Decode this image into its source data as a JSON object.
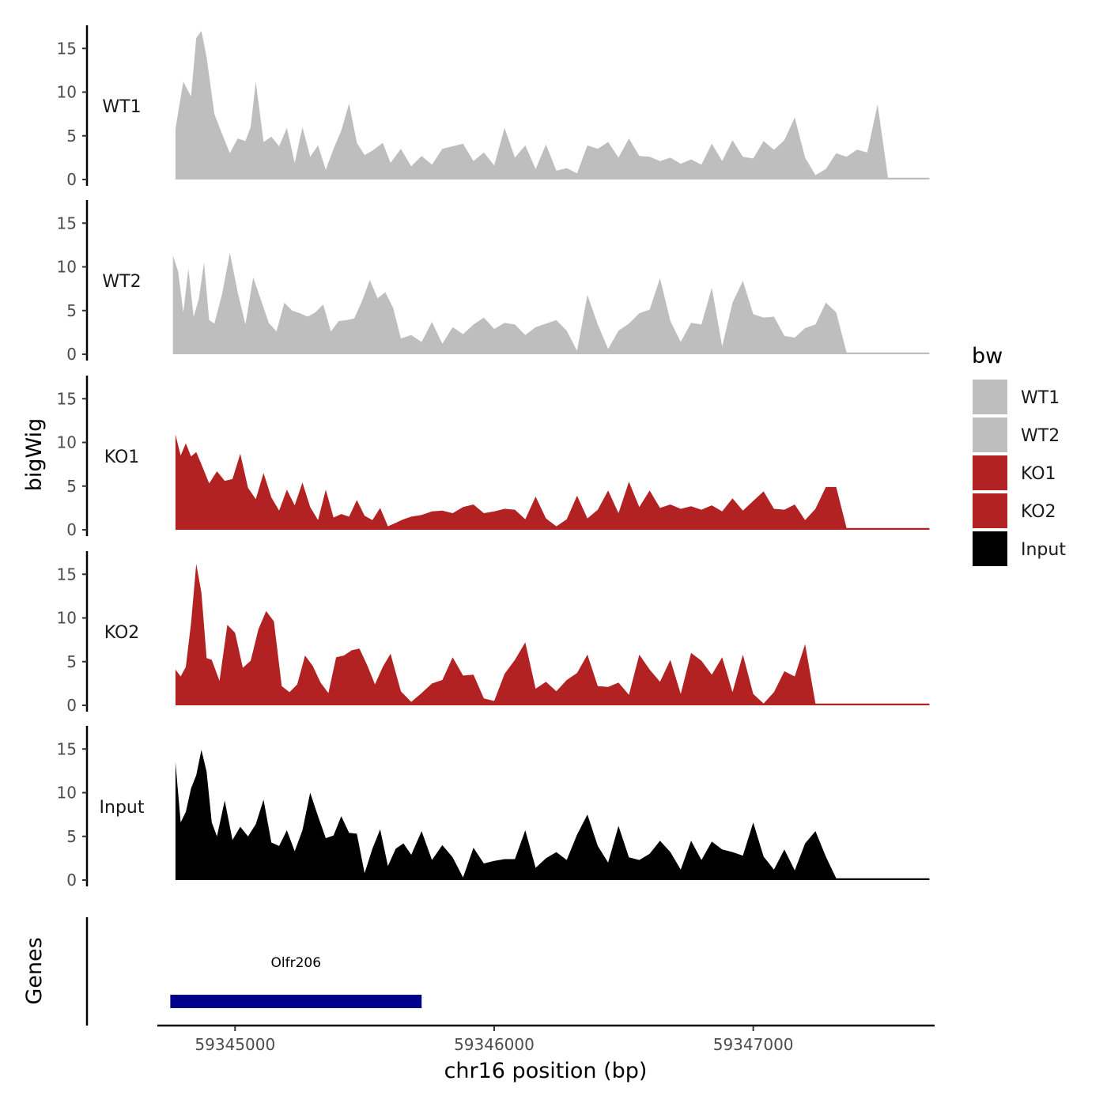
{
  "chart_data": {
    "type": "area",
    "x_range": [
      59344700,
      59347700
    ],
    "x_ticks": [
      59345000,
      59346000,
      59347000
    ],
    "x_tick_labels": [
      "59345000",
      "59346000",
      "59347000"
    ],
    "xlabel": "chr16 position (bp)",
    "ylabel": "bigWig",
    "genes_label": "Genes",
    "ylim": [
      0,
      18
    ],
    "y_ticks": [
      0,
      5,
      10,
      15
    ],
    "y_tick_labels": [
      "0",
      "5",
      "10",
      "15"
    ],
    "legend": {
      "title": "bw",
      "entries": [
        {
          "label": "WT1",
          "color": "#bebebe"
        },
        {
          "label": "WT2",
          "color": "#bebebe"
        },
        {
          "label": "KO1",
          "color": "#b22222"
        },
        {
          "label": "KO2",
          "color": "#b22222"
        },
        {
          "label": "Input",
          "color": "#000000"
        }
      ]
    },
    "series": [
      {
        "name": "WT1",
        "color": "#bebebe",
        "x": [
          59344770,
          59344800,
          59344830,
          59344850,
          59344870,
          59344890,
          59344920,
          59344950,
          59344980,
          59345010,
          59345040,
          59345060,
          59345080,
          59345110,
          59345140,
          59345170,
          59345200,
          59345230,
          59345260,
          59345290,
          59345320,
          59345350,
          59345380,
          59345410,
          59345440,
          59345470,
          59345500,
          59345530,
          59345570,
          59345600,
          59345640,
          59345680,
          59345720,
          59345760,
          59345800,
          59345840,
          59345880,
          59345920,
          59345960,
          59346000,
          59346040,
          59346080,
          59346120,
          59346160,
          59346200,
          59346240,
          59346280,
          59346320,
          59346360,
          59346400,
          59346440,
          59346480,
          59346520,
          59346560,
          59346600,
          59346640,
          59346680,
          59346720,
          59346760,
          59346800,
          59346840,
          59346880,
          59346920,
          59346960,
          59347000,
          59347040,
          59347080,
          59347120,
          59347160,
          59347200,
          59347240,
          59347280,
          59347320,
          59347360,
          59347400,
          59347440,
          59347480,
          59347520,
          59347560,
          59347600,
          59347640,
          59347680
        ],
        "values": [
          5.8,
          11.2,
          9.5,
          16.2,
          17,
          14,
          7.5,
          5.2,
          3,
          4.7,
          4.4,
          6,
          11.2,
          4.3,
          4.9,
          3.8,
          5.9,
          1.9,
          6,
          2.6,
          3.9,
          1.1,
          3.5,
          5.6,
          8.7,
          4.2,
          2.8,
          3.3,
          4.2,
          1.9,
          3.5,
          1.5,
          2.7,
          1.7,
          3.5,
          3.8,
          4.1,
          2.1,
          3.1,
          1.6,
          5.9,
          2.5,
          3.9,
          1.2,
          4,
          1,
          1.3,
          0.7,
          3.9,
          3.5,
          4.3,
          2.5,
          4.7,
          2.7,
          2.6,
          2.1,
          2.5,
          1.8,
          2.3,
          1.7,
          4.1,
          2.1,
          4.5,
          2.6,
          2.4,
          4.4,
          3.4,
          4.5,
          7.1,
          2.5,
          0.5,
          1.2,
          3,
          2.6,
          3.4,
          3.1,
          8.6,
          0.2,
          0.2,
          0.2,
          0.2,
          0.2
        ]
      },
      {
        "name": "WT2",
        "color": "#bebebe",
        "x": [
          59344760,
          59344780,
          59344800,
          59344820,
          59344840,
          59344860,
          59344880,
          59344900,
          59344920,
          59344950,
          59344980,
          59345010,
          59345040,
          59345070,
          59345100,
          59345130,
          59345160,
          59345190,
          59345220,
          59345250,
          59345280,
          59345310,
          59345340,
          59345370,
          59345400,
          59345430,
          59345460,
          59345490,
          59345520,
          59345550,
          59345580,
          59345610,
          59345640,
          59345680,
          59345720,
          59345760,
          59345800,
          59345840,
          59345880,
          59345920,
          59345960,
          59346000,
          59346040,
          59346080,
          59346120,
          59346160,
          59346200,
          59346240,
          59346280,
          59346320,
          59346360,
          59346400,
          59346440,
          59346480,
          59346520,
          59346560,
          59346600,
          59346640,
          59346680,
          59346720,
          59346760,
          59346800,
          59346840,
          59346880,
          59346920,
          59346960,
          59347000,
          59347040,
          59347080,
          59347120,
          59347160,
          59347200,
          59347240,
          59347280,
          59347320,
          59347360,
          59347400,
          59347440,
          59347480,
          59347520,
          59347560,
          59347600,
          59347640,
          59347680
        ],
        "values": [
          11.3,
          9.5,
          4.8,
          9.8,
          4.3,
          6.3,
          10.5,
          3.9,
          3.5,
          6.9,
          11.6,
          7.1,
          3.4,
          8.8,
          6.2,
          3.6,
          2.6,
          5.9,
          5,
          4.7,
          4.3,
          4.8,
          5.7,
          2.6,
          3.8,
          3.9,
          4.1,
          6.1,
          8.5,
          6.4,
          7.1,
          5.3,
          1.8,
          2.2,
          1.4,
          3.7,
          1.2,
          3.1,
          2.3,
          3.4,
          4.2,
          2.9,
          3.6,
          3.4,
          2.2,
          3.1,
          3.5,
          3.9,
          2.7,
          0.4,
          6.8,
          3.4,
          0.6,
          2.7,
          3.5,
          4.7,
          5.1,
          8.7,
          3.8,
          1.4,
          3.6,
          3.4,
          7.6,
          0.9,
          5.9,
          8.4,
          4.6,
          4.2,
          4.3,
          2.1,
          1.9,
          3,
          3.4,
          5.9,
          4.8,
          0.2,
          0.2,
          0.2,
          0.2,
          0.2,
          0.2,
          0.2,
          0.2,
          0.2
        ]
      },
      {
        "name": "KO1",
        "color": "#b22222",
        "x": [
          59344770,
          59344790,
          59344810,
          59344830,
          59344850,
          59344870,
          59344900,
          59344930,
          59344960,
          59344990,
          59345020,
          59345050,
          59345080,
          59345110,
          59345140,
          59345170,
          59345200,
          59345230,
          59345260,
          59345290,
          59345320,
          59345350,
          59345380,
          59345410,
          59345440,
          59345470,
          59345500,
          59345530,
          59345560,
          59345590,
          59345620,
          59345650,
          59345680,
          59345720,
          59345760,
          59345800,
          59345840,
          59345880,
          59345920,
          59345960,
          59346000,
          59346040,
          59346080,
          59346120,
          59346160,
          59346200,
          59346240,
          59346280,
          59346320,
          59346360,
          59346400,
          59346440,
          59346480,
          59346520,
          59346560,
          59346600,
          59346640,
          59346680,
          59346720,
          59346760,
          59346800,
          59346840,
          59346880,
          59346920,
          59346960,
          59347000,
          59347040,
          59347080,
          59347120,
          59347160,
          59347200,
          59347240,
          59347280,
          59347320,
          59347360,
          59347400,
          59347440,
          59347480,
          59347520,
          59347560,
          59347600,
          59347640,
          59347680
        ],
        "values": [
          10.9,
          8.5,
          9.9,
          8.4,
          8.9,
          7.5,
          5.3,
          6.7,
          5.6,
          5.8,
          8.7,
          4.8,
          3.5,
          6.5,
          3.7,
          2.2,
          4.6,
          2.8,
          5.4,
          2.6,
          1.1,
          4.6,
          1.4,
          1.8,
          1.5,
          3.4,
          1.6,
          1.1,
          2.5,
          0.4,
          0.8,
          1.2,
          1.5,
          1.7,
          2.1,
          2.2,
          1.9,
          2.6,
          2.9,
          1.9,
          2.1,
          2.4,
          2.3,
          1.2,
          3.8,
          1.3,
          0.4,
          1.2,
          3.9,
          1.3,
          2.3,
          4.5,
          1.9,
          5.5,
          2.6,
          4.5,
          2.5,
          2.9,
          2.4,
          2.7,
          2.3,
          2.8,
          2.1,
          3.6,
          2.2,
          3.3,
          4.4,
          2.4,
          2.3,
          2.9,
          1.1,
          2.4,
          4.9,
          4.9,
          0.2,
          0.2,
          0.2,
          0.2,
          0.2,
          0.2,
          0.2,
          0.2,
          0.2
        ]
      },
      {
        "name": "KO2",
        "color": "#b22222",
        "x": [
          59344770,
          59344790,
          59344810,
          59344830,
          59344850,
          59344870,
          59344890,
          59344910,
          59344940,
          59344970,
          59345000,
          59345030,
          59345060,
          59345090,
          59345120,
          59345150,
          59345180,
          59345210,
          59345240,
          59345270,
          59345300,
          59345330,
          59345360,
          59345390,
          59345420,
          59345450,
          59345480,
          59345510,
          59345540,
          59345570,
          59345600,
          59345640,
          59345680,
          59345720,
          59345760,
          59345800,
          59345840,
          59345880,
          59345920,
          59345960,
          59346000,
          59346040,
          59346080,
          59346120,
          59346160,
          59346200,
          59346240,
          59346280,
          59346320,
          59346360,
          59346400,
          59346440,
          59346480,
          59346520,
          59346560,
          59346600,
          59346640,
          59346680,
          59346720,
          59346760,
          59346800,
          59346840,
          59346880,
          59346920,
          59346960,
          59347000,
          59347040,
          59347080,
          59347120,
          59347160,
          59347200,
          59347240,
          59347280,
          59347320,
          59347360,
          59347400,
          59347440,
          59347480,
          59347520,
          59347560,
          59347600,
          59347640,
          59347680
        ],
        "values": [
          4.1,
          3.3,
          4.4,
          9.4,
          16.2,
          12.9,
          5.4,
          5.2,
          2.8,
          9.2,
          8.3,
          4.3,
          5.1,
          8.7,
          10.8,
          9.6,
          2.2,
          1.5,
          2.4,
          5.7,
          4.5,
          2.6,
          1.4,
          5.5,
          5.7,
          6.3,
          6.5,
          4.6,
          2.4,
          4.4,
          5.9,
          1.6,
          0.4,
          1.4,
          2.5,
          2.9,
          5.5,
          3.4,
          3.5,
          0.8,
          0.5,
          3.6,
          5.2,
          7.2,
          1.9,
          2.7,
          1.6,
          2.9,
          3.7,
          5.8,
          2.2,
          2.1,
          2.6,
          1.2,
          5.8,
          4.1,
          2.7,
          5.2,
          1.3,
          6,
          5.1,
          3.5,
          5.5,
          1.5,
          5.8,
          1.3,
          0.2,
          1.5,
          3.9,
          3.3,
          7,
          0.2,
          0.2,
          0.2,
          0.2,
          0.2,
          0.2,
          0.2,
          0.2,
          0.2,
          0.2,
          0.2,
          0.2
        ]
      },
      {
        "name": "Input",
        "color": "#000000",
        "x": [
          59344770,
          59344790,
          59344810,
          59344830,
          59344850,
          59344870,
          59344890,
          59344910,
          59344930,
          59344960,
          59344990,
          59345020,
          59345050,
          59345080,
          59345110,
          59345140,
          59345170,
          59345200,
          59345230,
          59345260,
          59345290,
          59345320,
          59345350,
          59345380,
          59345410,
          59345440,
          59345470,
          59345500,
          59345530,
          59345560,
          59345590,
          59345620,
          59345650,
          59345680,
          59345720,
          59345760,
          59345800,
          59345840,
          59345880,
          59345920,
          59345960,
          59346000,
          59346040,
          59346080,
          59346120,
          59346160,
          59346200,
          59346240,
          59346280,
          59346320,
          59346360,
          59346400,
          59346440,
          59346480,
          59346520,
          59346560,
          59346600,
          59346640,
          59346680,
          59346720,
          59346760,
          59346800,
          59346840,
          59346880,
          59346920,
          59346960,
          59347000,
          59347040,
          59347080,
          59347120,
          59347160,
          59347200,
          59347240,
          59347280,
          59347320,
          59347360,
          59347400,
          59347440,
          59347480,
          59347520,
          59347560,
          59347600,
          59347640,
          59347680
        ],
        "values": [
          13.5,
          6.6,
          7.8,
          10.5,
          12,
          14.9,
          12.4,
          6.6,
          5,
          9.1,
          4.6,
          6.1,
          5,
          6.4,
          9.2,
          4.3,
          3.9,
          5.7,
          3.3,
          5.7,
          10,
          7.3,
          4.8,
          5.1,
          7.3,
          5.4,
          5.3,
          0.8,
          3.6,
          5.8,
          1.6,
          3.6,
          4.2,
          2.9,
          5.6,
          2.3,
          4,
          2.6,
          0.3,
          3.7,
          1.9,
          2.2,
          2.4,
          2.4,
          5.7,
          1.4,
          2.5,
          3.2,
          2.3,
          5.2,
          7.5,
          3.9,
          2,
          6.2,
          2.6,
          2.3,
          3,
          4.5,
          3.2,
          1.2,
          4.5,
          2.3,
          4.4,
          3.5,
          3.2,
          2.8,
          6.6,
          2.7,
          1.2,
          3.5,
          1.1,
          4.2,
          5.6,
          2.7,
          0.2,
          0.2,
          0.2,
          0.2,
          0.2,
          0.2,
          0.2,
          0.2,
          0.2,
          0.2
        ]
      }
    ],
    "genes": [
      {
        "name": "Olfr206",
        "start": 59344750,
        "end": 59345720,
        "color": "#00008b"
      }
    ]
  }
}
